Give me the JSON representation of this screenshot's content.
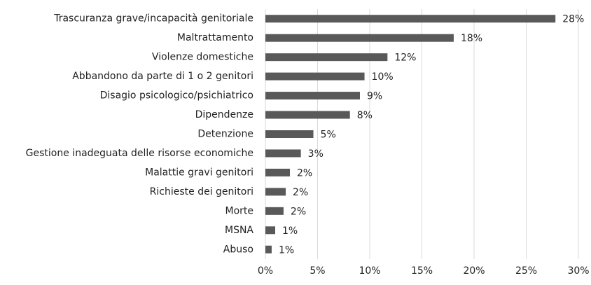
{
  "chart_data": {
    "type": "bar",
    "orientation": "horizontal",
    "categories": [
      "Trascuranza grave/incapacità genitoriale",
      "Maltrattamento",
      "Violenze domestiche",
      "Abbandono da parte di 1 o 2 genitori",
      "Disagio psicologico/psichiatrico",
      "Dipendenze",
      "Detenzione",
      "Gestione inadeguata delle risorse economiche",
      "Malattie gravi genitori",
      "Richieste dei genitori",
      "Morte",
      "MSNA",
      "Abuso"
    ],
    "values": [
      27.8,
      18.05,
      11.7,
      9.5,
      9.06,
      8.1,
      4.6,
      3.4,
      2.35,
      1.95,
      1.74,
      0.94,
      0.6
    ],
    "value_labels": [
      "28%",
      "18%",
      "12%",
      "10%",
      "9%",
      "8%",
      "5%",
      "3%",
      "2%",
      "2%",
      "2%",
      "1%",
      "1%"
    ],
    "color": "#595959",
    "xlim": [
      0,
      30
    ],
    "xticks": [
      {
        "value": 0,
        "label": "0%"
      },
      {
        "value": 5,
        "label": "5%"
      },
      {
        "value": 10,
        "label": "10%"
      },
      {
        "value": 15,
        "label": "15%"
      },
      {
        "value": 20,
        "label": "20%"
      },
      {
        "value": 25,
        "label": "25%"
      },
      {
        "value": 30,
        "label": "30%"
      }
    ],
    "grid": true
  }
}
